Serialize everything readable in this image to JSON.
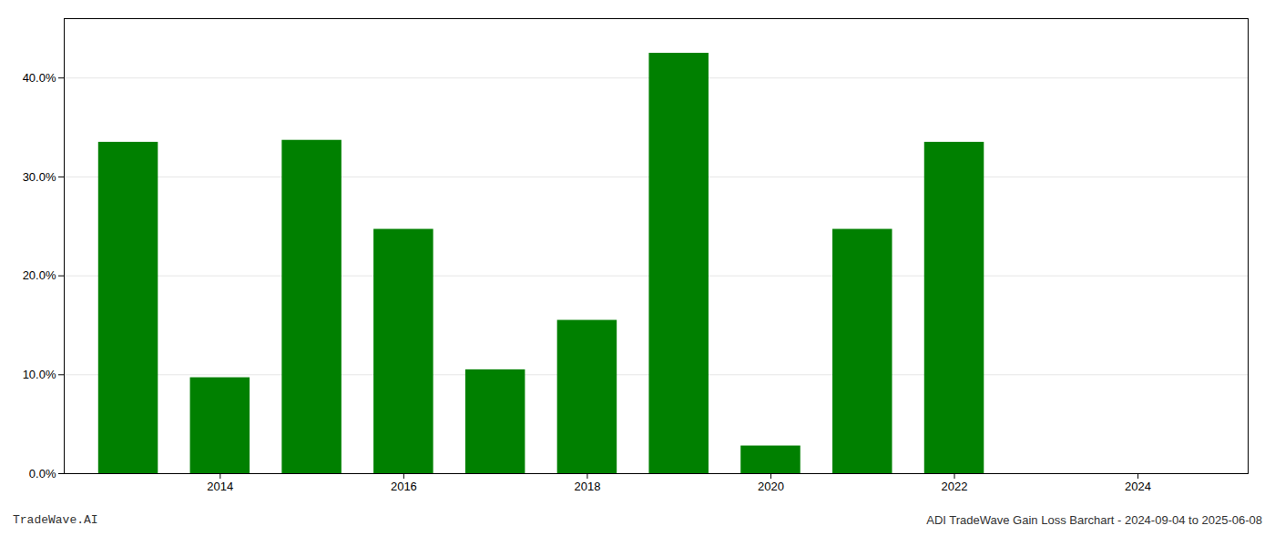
{
  "chart_data": {
    "type": "bar",
    "x": [
      2013,
      2014,
      2015,
      2016,
      2017,
      2018,
      2019,
      2020,
      2021,
      2022,
      2024
    ],
    "values": [
      0.335,
      0.097,
      0.337,
      0.247,
      0.105,
      0.155,
      0.425,
      0.028,
      0.247,
      0.335,
      0.0
    ],
    "color": "#008000",
    "xlim": [
      2012.3,
      2025.2
    ],
    "xticks": [
      2014,
      2016,
      2018,
      2020,
      2022,
      2024
    ],
    "ylim": [
      0,
      0.46
    ],
    "yticks": [
      {
        "value": 0.0,
        "label": "0.0%"
      },
      {
        "value": 0.1,
        "label": "10.0%"
      },
      {
        "value": 0.2,
        "label": "20.0%"
      },
      {
        "value": 0.3,
        "label": "30.0%"
      },
      {
        "value": 0.4,
        "label": "40.0%"
      }
    ],
    "grid": true,
    "annotations": [
      "TradeWave.AI",
      "ADI TradeWave Gain Loss Barchart - 2024-09-04 to 2025-06-08"
    ]
  }
}
